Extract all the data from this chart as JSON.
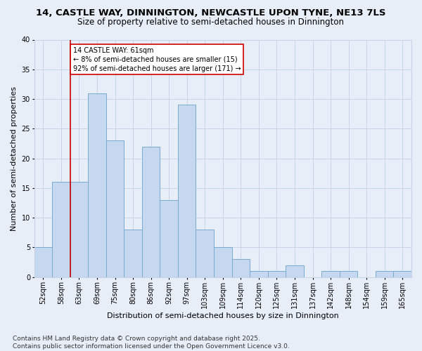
{
  "title1": "14, CASTLE WAY, DINNINGTON, NEWCASTLE UPON TYNE, NE13 7LS",
  "title2": "Size of property relative to semi-detached houses in Dinnington",
  "xlabel": "Distribution of semi-detached houses by size in Dinnington",
  "ylabel": "Number of semi-detached properties",
  "categories": [
    "52sqm",
    "58sqm",
    "63sqm",
    "69sqm",
    "75sqm",
    "80sqm",
    "86sqm",
    "92sqm",
    "97sqm",
    "103sqm",
    "109sqm",
    "114sqm",
    "120sqm",
    "125sqm",
    "131sqm",
    "137sqm",
    "142sqm",
    "148sqm",
    "154sqm",
    "159sqm",
    "165sqm"
  ],
  "values": [
    5,
    16,
    16,
    31,
    23,
    8,
    22,
    13,
    29,
    8,
    5,
    3,
    1,
    1,
    2,
    0,
    1,
    1,
    0,
    1,
    1
  ],
  "bar_color": "#c5d8f0",
  "bar_edge_color": "#7aaad0",
  "vline_color": "#cc0000",
  "vline_pos": 1.5,
  "annotation_title": "14 CASTLE WAY: 61sqm",
  "annotation_line1": "← 8% of semi-detached houses are smaller (15)",
  "annotation_line2": "92% of semi-detached houses are larger (171) →",
  "annotation_box_color": "#ffffff",
  "annotation_box_edge": "#cc0000",
  "ylim": [
    0,
    40
  ],
  "yticks": [
    0,
    5,
    10,
    15,
    20,
    25,
    30,
    35,
    40
  ],
  "grid_color": "#c8d4e8",
  "bg_color": "#e8eef8",
  "footer": "Contains HM Land Registry data © Crown copyright and database right 2025.\nContains public sector information licensed under the Open Government Licence v3.0.",
  "title1_fontsize": 9.5,
  "title2_fontsize": 8.5,
  "xlabel_fontsize": 8,
  "ylabel_fontsize": 8,
  "tick_fontsize": 7,
  "footer_fontsize": 6.5,
  "annotation_fontsize": 7
}
